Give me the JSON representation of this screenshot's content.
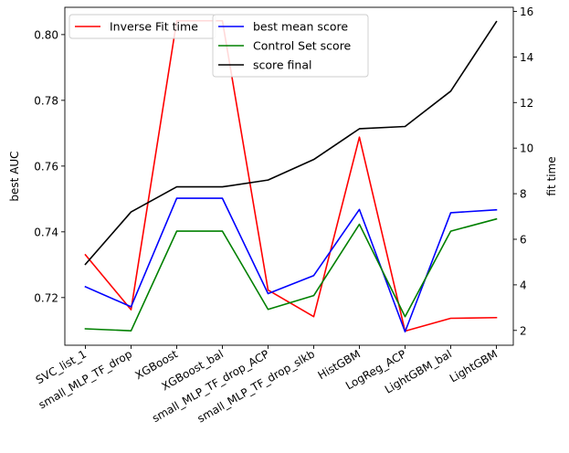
{
  "chart_data": {
    "type": "line",
    "categories": [
      "SVC_list_1",
      "small_MLP_TF_drop",
      "XGBoost",
      "XGBoost_bal",
      "small_MLP_TF_drop_ACP",
      "small_MLP_TF_drop_slkb",
      "HistGBM",
      "LogReg_ACP",
      "LightGBM_bal",
      "LightGBM"
    ],
    "left_axis": {
      "label": "best AUC",
      "ylim": [
        0.7055,
        0.8083
      ],
      "ticks": [
        0.72,
        0.74,
        0.76,
        0.78,
        0.8
      ],
      "tick_labels": [
        "0.72",
        "0.74",
        "0.76",
        "0.78",
        "0.80"
      ]
    },
    "right_axis": {
      "label": "fit time",
      "ylim": [
        1.35,
        16.18
      ],
      "ticks": [
        2,
        4,
        6,
        8,
        10,
        12,
        14,
        16
      ],
      "tick_labels": [
        "2",
        "4",
        "6",
        "8",
        "10",
        "12",
        "14",
        "16"
      ]
    },
    "series": [
      {
        "name": "Inverse Fit time",
        "axis": "left",
        "color": "#ff0000",
        "values": [
          0.733,
          0.7163,
          0.8042,
          0.8042,
          0.7223,
          0.7142,
          0.7688,
          0.7098,
          0.7137,
          0.7139
        ]
      },
      {
        "name": "best mean score",
        "axis": "left",
        "color": "#0000ff",
        "values": [
          0.7233,
          0.7172,
          0.7502,
          0.7502,
          0.7212,
          0.7267,
          0.7468,
          0.7096,
          0.7458,
          0.7467
        ]
      },
      {
        "name": "Control Set score",
        "axis": "left",
        "color": "#008000",
        "values": [
          0.7105,
          0.7099,
          0.7402,
          0.7402,
          0.7164,
          0.7206,
          0.7423,
          0.7142,
          0.7402,
          0.7439
        ]
      },
      {
        "name": "score final",
        "axis": "right",
        "color": "#000000",
        "values": [
          4.9,
          7.2,
          8.3,
          8.3,
          8.6,
          9.5,
          10.85,
          10.95,
          12.5,
          15.55
        ]
      }
    ],
    "legend": {
      "left_group": [
        "Inverse Fit time"
      ],
      "right_group": [
        "best mean score",
        "Control Set score",
        "score final"
      ],
      "placement": "top-left"
    }
  }
}
